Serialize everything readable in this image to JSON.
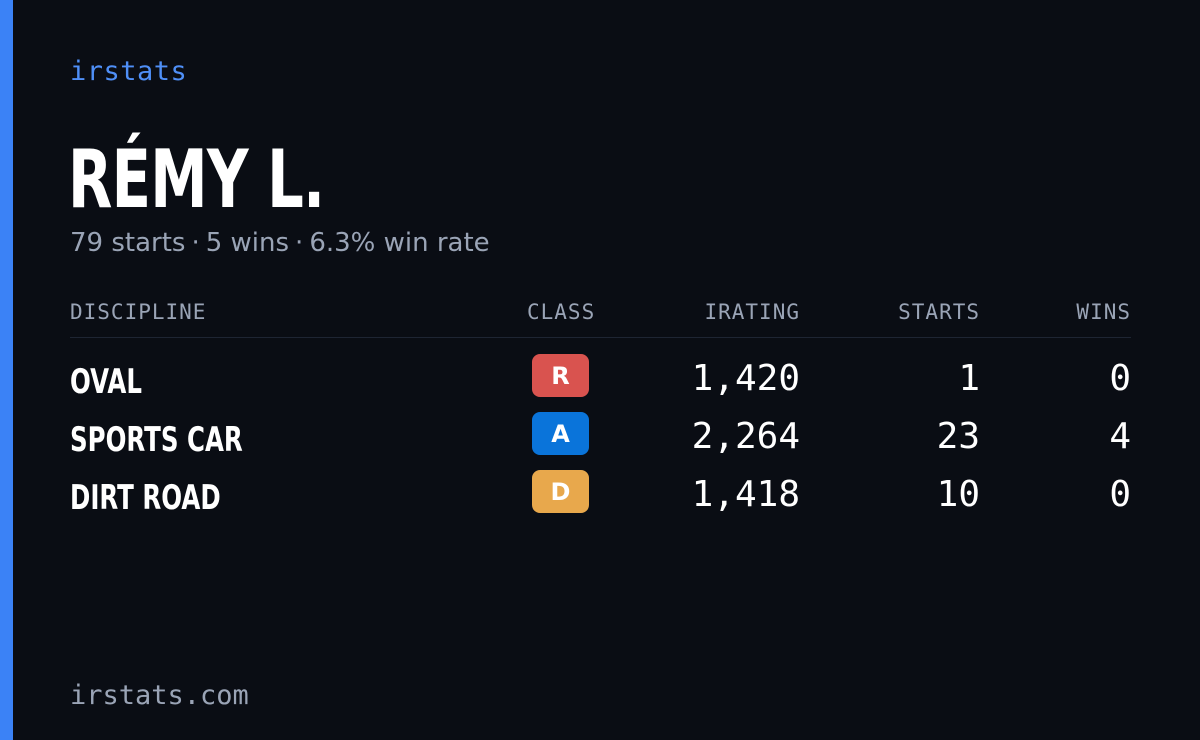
{
  "brand": "irstats",
  "player": {
    "name": "RÉMY L.",
    "starts_text": "79 starts",
    "wins_text": "5 wins",
    "winrate_text": "6.3% win rate",
    "separator": "·"
  },
  "table": {
    "headers": {
      "discipline": "DISCIPLINE",
      "class": "CLASS",
      "irating": "IRATING",
      "starts": "STARTS",
      "wins": "WINS"
    },
    "rows": [
      {
        "discipline": "OVAL",
        "class": "R",
        "class_color": "#d9534f",
        "irating": "1,420",
        "starts": "1",
        "wins": "0"
      },
      {
        "discipline": "SPORTS CAR",
        "class": "A",
        "class_color": "#0a74da",
        "irating": "2,264",
        "starts": "23",
        "wins": "4"
      },
      {
        "discipline": "DIRT ROAD",
        "class": "D",
        "class_color": "#e8a84c",
        "irating": "1,418",
        "starts": "10",
        "wins": "0"
      }
    ]
  },
  "footer": "irstats.com",
  "colors": {
    "background": "#0a0d14",
    "accent": "#3b82f6",
    "brand_text": "#4f8ff7",
    "muted_text": "#9aa4b6"
  }
}
